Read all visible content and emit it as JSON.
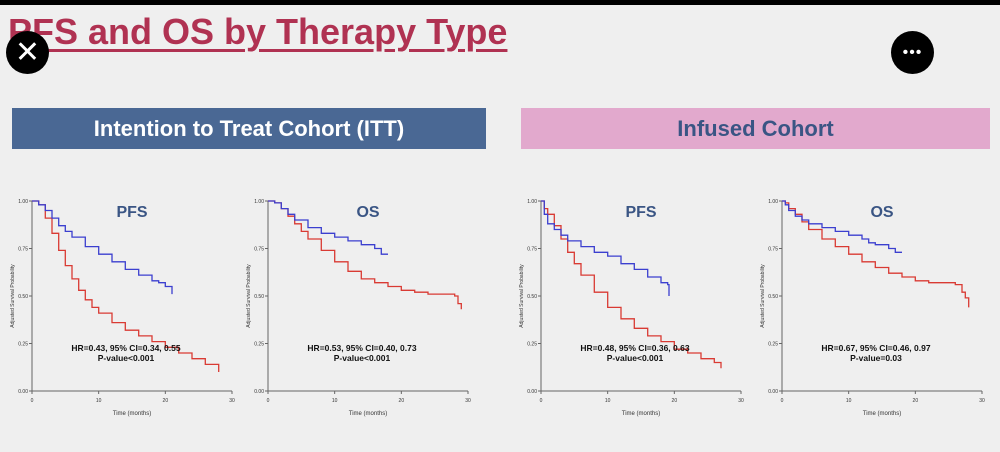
{
  "slide": {
    "title": "PFS and OS by Therapy Type",
    "close_icon": "close-icon",
    "more_icon": "more-options-icon",
    "close_glyph": "✕",
    "more_glyph": "•••"
  },
  "banners": {
    "itt": "Intention to Treat Cohort (ITT)",
    "infused": "Infused Cohort",
    "itt_color": "#4a6894",
    "infused_color": "#e2a9cd"
  },
  "colors": {
    "red_series": "#d93a33",
    "blue_series": "#3b3fcf"
  },
  "chart_data": [
    {
      "type": "line",
      "cohort": "Intention to Treat Cohort (ITT)",
      "title": "PFS",
      "xlabel": "Time (months)",
      "ylabel": "Adjusted Survival Probability",
      "xlim": [
        0,
        30
      ],
      "ylim": [
        0,
        1
      ],
      "xticks": [
        "0",
        "10",
        "20",
        "30"
      ],
      "yticks": [
        "0.00",
        "0.25",
        "0.50",
        "0.75",
        "1.00"
      ],
      "annotation": [
        "HR=0.43, 95% CI=0.34, 0.55",
        "P-value<0.001"
      ],
      "series": [
        {
          "color": "#d93a33",
          "x": [
            0,
            1,
            2,
            3,
            4,
            5,
            6,
            7,
            8,
            9,
            10,
            12,
            14,
            16,
            18,
            20,
            22,
            24,
            26,
            28
          ],
          "y": [
            1.0,
            0.98,
            0.91,
            0.83,
            0.74,
            0.66,
            0.59,
            0.53,
            0.48,
            0.44,
            0.41,
            0.36,
            0.32,
            0.29,
            0.26,
            0.23,
            0.2,
            0.17,
            0.14,
            0.1
          ]
        },
        {
          "color": "#3b3fcf",
          "x": [
            0,
            1,
            2,
            3,
            4,
            5,
            6,
            8,
            10,
            12,
            14,
            16,
            18,
            19,
            20,
            21
          ],
          "y": [
            1.0,
            0.98,
            0.95,
            0.91,
            0.87,
            0.84,
            0.81,
            0.76,
            0.72,
            0.68,
            0.64,
            0.61,
            0.58,
            0.57,
            0.55,
            0.51
          ]
        }
      ]
    },
    {
      "type": "line",
      "cohort": "Intention to Treat Cohort (ITT)",
      "title": "OS",
      "xlabel": "Time (months)",
      "ylabel": "Adjusted Survival Probability",
      "xlim": [
        0,
        30
      ],
      "ylim": [
        0,
        1
      ],
      "xticks": [
        "0",
        "10",
        "20",
        "30"
      ],
      "yticks": [
        "0.00",
        "0.25",
        "0.50",
        "0.75",
        "1.00"
      ],
      "annotation": [
        "HR=0.53, 95% CI=0.40, 0.73",
        "P-value<0.001"
      ],
      "series": [
        {
          "color": "#d93a33",
          "x": [
            0,
            1,
            2,
            3,
            4,
            5,
            6,
            8,
            10,
            12,
            14,
            16,
            18,
            20,
            22,
            24,
            26,
            28,
            28.5,
            29
          ],
          "y": [
            1.0,
            0.99,
            0.96,
            0.92,
            0.88,
            0.84,
            0.8,
            0.74,
            0.68,
            0.63,
            0.59,
            0.57,
            0.55,
            0.53,
            0.52,
            0.51,
            0.51,
            0.5,
            0.46,
            0.43
          ]
        },
        {
          "color": "#3b3fcf",
          "x": [
            0,
            1,
            2,
            3,
            4,
            6,
            8,
            10,
            12,
            14,
            16,
            17,
            18
          ],
          "y": [
            1.0,
            0.99,
            0.96,
            0.93,
            0.9,
            0.86,
            0.83,
            0.81,
            0.79,
            0.77,
            0.75,
            0.72,
            0.72
          ]
        }
      ]
    },
    {
      "type": "line",
      "cohort": "Infused Cohort",
      "title": "PFS",
      "xlabel": "Time (months)",
      "ylabel": "Adjusted Survival Probability",
      "xlim": [
        0,
        30
      ],
      "ylim": [
        0,
        1
      ],
      "xticks": [
        "0",
        "10",
        "20",
        "30"
      ],
      "yticks": [
        "0.00",
        "0.25",
        "0.50",
        "0.75",
        "1.00"
      ],
      "annotation": [
        "HR=0.48, 95% CI=0.36, 0.63",
        "P-value<0.001"
      ],
      "series": [
        {
          "color": "#d93a33",
          "x": [
            0,
            0.5,
            1,
            2,
            3,
            4,
            5,
            6,
            8,
            10,
            12,
            14,
            16,
            18,
            20,
            22,
            24,
            26,
            27
          ],
          "y": [
            1.0,
            0.96,
            0.93,
            0.87,
            0.8,
            0.73,
            0.67,
            0.61,
            0.52,
            0.44,
            0.38,
            0.33,
            0.29,
            0.26,
            0.22,
            0.2,
            0.17,
            0.15,
            0.12
          ]
        },
        {
          "color": "#3b3fcf",
          "x": [
            0,
            0.5,
            1,
            2,
            3,
            4,
            6,
            8,
            10,
            12,
            14,
            16,
            18,
            19,
            19.2
          ],
          "y": [
            1.0,
            0.93,
            0.88,
            0.85,
            0.82,
            0.79,
            0.76,
            0.73,
            0.71,
            0.67,
            0.64,
            0.6,
            0.57,
            0.56,
            0.5
          ]
        }
      ]
    },
    {
      "type": "line",
      "cohort": "Infused Cohort",
      "title": "OS",
      "xlabel": "Time (months)",
      "ylabel": "Adjusted Survival Probability",
      "xlim": [
        0,
        30
      ],
      "ylim": [
        0,
        1
      ],
      "xticks": [
        "0",
        "10",
        "20",
        "30"
      ],
      "yticks": [
        "0.00",
        "0.25",
        "0.50",
        "0.75",
        "1.00"
      ],
      "annotation": [
        "HR=0.67, 95% CI=0.46, 0.97",
        "P-value=0.03"
      ],
      "series": [
        {
          "color": "#d93a33",
          "x": [
            0,
            0.5,
            1,
            2,
            3,
            4,
            6,
            8,
            10,
            12,
            14,
            16,
            18,
            20,
            22,
            24,
            26,
            27,
            27.5,
            28
          ],
          "y": [
            1.0,
            0.99,
            0.96,
            0.93,
            0.89,
            0.85,
            0.8,
            0.76,
            0.72,
            0.68,
            0.65,
            0.62,
            0.6,
            0.58,
            0.57,
            0.57,
            0.56,
            0.52,
            0.49,
            0.44
          ]
        },
        {
          "color": "#3b3fcf",
          "x": [
            0,
            0.5,
            1,
            2,
            3,
            4,
            6,
            8,
            10,
            12,
            13,
            14,
            16,
            17,
            18
          ],
          "y": [
            1.0,
            0.98,
            0.95,
            0.92,
            0.9,
            0.88,
            0.86,
            0.84,
            0.82,
            0.8,
            0.78,
            0.77,
            0.75,
            0.73,
            0.73
          ]
        }
      ]
    }
  ]
}
